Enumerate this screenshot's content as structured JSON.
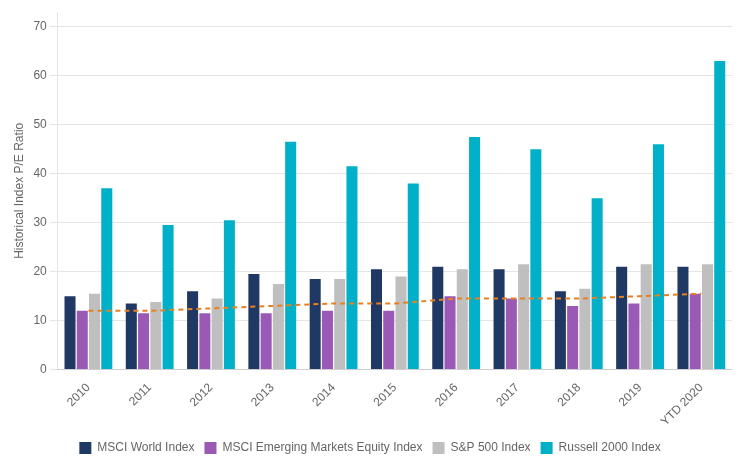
{
  "chart_data": {
    "type": "bar",
    "categories": [
      "2010",
      "2011",
      "2012",
      "2013",
      "2014",
      "2015",
      "2016",
      "2017",
      "2018",
      "2019",
      "YTD 2020"
    ],
    "series": [
      {
        "name": "MSCI World Index",
        "color": "#1f3864",
        "values": [
          15.0,
          13.5,
          16.0,
          19.5,
          18.5,
          20.5,
          21.0,
          20.5,
          16.0,
          21.0,
          21.0
        ]
      },
      {
        "name": "MSCI Emerging Markets Equity Index",
        "color": "#9b59b6",
        "values": [
          12.0,
          11.5,
          11.5,
          11.5,
          12.0,
          12.0,
          15.0,
          14.5,
          13.0,
          13.5,
          15.5
        ]
      },
      {
        "name": "S&P 500 Index",
        "color": "#bfbfbf",
        "values": [
          15.5,
          13.8,
          14.5,
          17.5,
          18.5,
          19.0,
          20.5,
          21.5,
          16.5,
          21.5,
          21.5
        ]
      },
      {
        "name": "Russell 2000 Index",
        "color": "#00b0c8",
        "values": [
          37.0,
          29.5,
          30.5,
          46.5,
          41.5,
          38.0,
          47.5,
          45.0,
          35.0,
          46.0,
          63.0
        ]
      },
      {
        "type": "line",
        "line_style": "dashed",
        "color": "#e88020",
        "values": [
          12.0,
          12.0,
          12.5,
          13.0,
          13.5,
          13.5,
          14.5,
          14.5,
          14.5,
          15.0,
          15.5
        ]
      }
    ],
    "ylabel": "Historical Index P/E Ratio",
    "ylim": [
      0,
      73
    ],
    "yticks": [
      0,
      10,
      20,
      30,
      40,
      50,
      60,
      70
    ],
    "grid": true,
    "legend": "bottom"
  }
}
